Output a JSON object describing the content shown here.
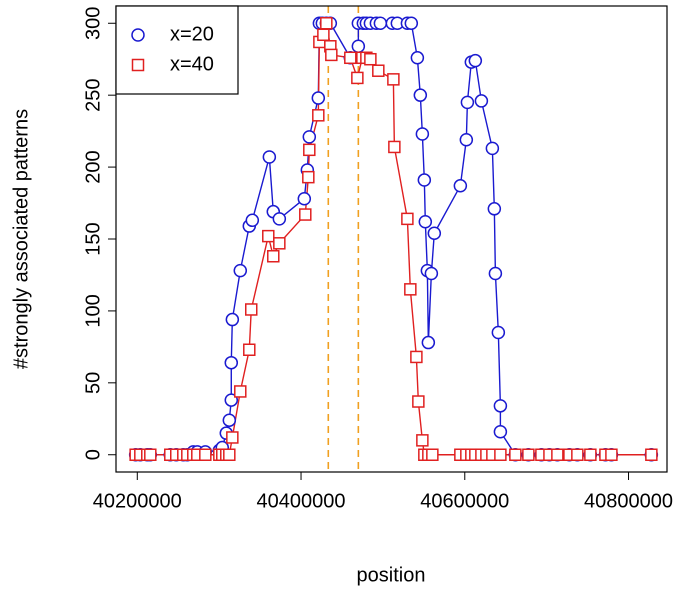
{
  "chart_data": {
    "type": "line",
    "xlabel": "position",
    "ylabel": "#strongly associated patterns",
    "xlim": [
      40174000,
      40847000
    ],
    "ylim": [
      -12,
      312
    ],
    "xticks": [
      40200000,
      40400000,
      40600000,
      40800000
    ],
    "yticks": [
      0,
      50,
      100,
      150,
      200,
      250,
      300
    ],
    "legend": "top-left",
    "vlines": [
      40433300,
      40470000
    ],
    "vline_color": "#f0a020",
    "series": [
      {
        "name": "x=20",
        "color": "#1a1ad0",
        "marker": "circle",
        "x": [
          40198000,
          40203700,
          40212200,
          40215900,
          40240300,
          40247600,
          40256200,
          40261100,
          40268400,
          40273300,
          40283100,
          40300200,
          40303800,
          40308700,
          40312400,
          40314800,
          40314800,
          40316100,
          40325800,
          40336800,
          40340500,
          40361300,
          40366100,
          40373500,
          40404000,
          40407700,
          40410100,
          40421100,
          40422400,
          40426000,
          40430900,
          40435800,
          40460200,
          40470000,
          40470000,
          40476100,
          40479800,
          40484700,
          40492000,
          40496900,
          40511500,
          40517600,
          40529900,
          40534700,
          40542100,
          40545700,
          40548200,
          40550600,
          40551800,
          40554300,
          40555500,
          40559200,
          40562800,
          40594600,
          40601900,
          40603200,
          40608000,
          40612900,
          40620300,
          40633700,
          40636100,
          40637400,
          40641000,
          40643500,
          40643500,
          40661800,
          40677700,
          40693600,
          40703400,
          40713100,
          40727800,
          40737500,
          40753400,
          40771800,
          40779100,
          40827900
        ],
        "values": [
          0,
          0,
          0,
          0,
          0,
          0,
          0,
          0,
          2,
          2,
          2,
          3,
          5,
          15,
          24,
          38,
          64,
          94,
          128,
          159,
          163,
          207,
          169,
          164,
          178,
          198,
          221,
          248,
          300,
          300,
          300,
          300,
          276,
          284,
          300,
          300,
          300,
          300,
          300,
          300,
          300,
          300,
          300,
          300,
          276,
          250,
          223,
          191,
          162,
          128,
          78,
          126,
          154,
          187,
          219,
          245,
          273,
          274,
          246,
          213,
          171,
          126,
          85,
          34,
          16,
          0,
          0,
          0,
          0,
          0,
          0,
          0,
          0,
          0,
          0,
          0
        ]
      },
      {
        "name": "x=40",
        "color": "#e02020",
        "marker": "square",
        "x": [
          40198000,
          40203700,
          40212200,
          40215900,
          40240300,
          40247600,
          40256200,
          40261100,
          40268400,
          40273300,
          40283100,
          40300200,
          40303800,
          40308700,
          40312400,
          40316100,
          40325800,
          40336800,
          40339200,
          40360000,
          40366100,
          40373500,
          40405200,
          40408900,
          40410100,
          40421100,
          40422400,
          40427300,
          40430900,
          40435800,
          40437000,
          40460200,
          40468800,
          40474900,
          40479800,
          40484700,
          40494400,
          40512800,
          40514000,
          40529900,
          40533500,
          40540900,
          40543300,
          40548200,
          40550600,
          40555500,
          40560400,
          40594600,
          40601900,
          40608000,
          40612900,
          40620300,
          40626400,
          40633700,
          40643500,
          40661800,
          40677700,
          40693600,
          40703400,
          40713100,
          40727800,
          40737500,
          40753400,
          40771800,
          40779100,
          40827900
        ],
        "values": [
          0,
          0,
          0,
          0,
          0,
          0,
          0,
          0,
          0,
          0,
          0,
          0,
          0,
          0,
          0,
          12,
          44,
          73,
          101,
          152,
          138,
          147,
          167,
          193,
          212,
          236,
          287,
          292,
          300,
          284,
          278,
          276,
          262,
          276,
          276,
          275,
          267,
          261,
          214,
          164,
          115,
          68,
          37,
          10,
          0,
          0,
          0,
          0,
          0,
          0,
          0,
          0,
          0,
          0,
          0,
          0,
          0,
          0,
          0,
          0,
          0,
          0,
          0,
          0,
          0,
          0
        ]
      }
    ]
  }
}
